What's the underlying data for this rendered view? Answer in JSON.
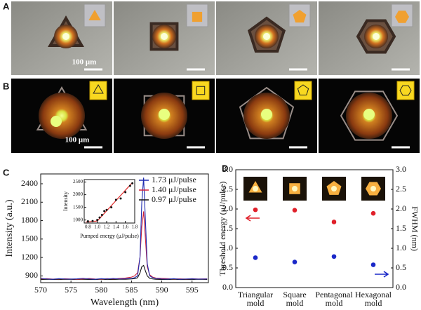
{
  "panel_labels": [
    "A",
    "B",
    "C",
    "D"
  ],
  "scale_bar_labels": [
    "100 μm",
    "100 μm"
  ],
  "chart_data": [
    {
      "type": "line",
      "xlabel": "Wavelength (nm)",
      "ylabel": "Intensity (a.u.)",
      "x": [
        570,
        571,
        572,
        573,
        574,
        575,
        576,
        577,
        578,
        579,
        580,
        581,
        582,
        583,
        584,
        585,
        585.5,
        586,
        586.4,
        586.7,
        587,
        587.3,
        587.6,
        588,
        588.5,
        589,
        590,
        591,
        592,
        593,
        594,
        595,
        596,
        597.5
      ],
      "series": [
        {
          "name": "1.73 μJ/pulse",
          "color": "#1f2bb0",
          "values": [
            860,
            850,
            845,
            855,
            850,
            848,
            852,
            860,
            850,
            845,
            855,
            850,
            858,
            850,
            852,
            860,
            870,
            900,
            1200,
            2100,
            2500,
            1800,
            1100,
            900,
            870,
            860,
            850,
            848,
            855,
            845,
            850,
            852,
            848,
            850
          ]
        },
        {
          "name": "1.40 μJ/pulse",
          "color": "#d0203a",
          "values": [
            850,
            855,
            848,
            850,
            853,
            850,
            845,
            850,
            858,
            850,
            848,
            855,
            850,
            860,
            865,
            880,
            900,
            950,
            1200,
            1700,
            1950,
            1500,
            1050,
            920,
            880,
            865,
            860,
            855,
            850,
            852,
            848,
            855,
            850,
            852
          ]
        },
        {
          "name": "0.97 μJ/pulse",
          "color": "#111111",
          "values": [
            840,
            845,
            842,
            840,
            845,
            843,
            840,
            845,
            842,
            840,
            845,
            840,
            842,
            845,
            845,
            850,
            855,
            870,
            950,
            1050,
            1070,
            980,
            900,
            860,
            850,
            845,
            842,
            840,
            845,
            840,
            842,
            840,
            845,
            842
          ]
        }
      ],
      "xlim": [
        570,
        597.7
      ],
      "xticks": [
        570,
        575,
        580,
        585,
        590,
        595
      ],
      "ylim": [
        790,
        2560
      ],
      "yticks": [
        900,
        1200,
        1500,
        1800,
        2100,
        2400
      ]
    },
    {
      "type": "scatter",
      "xlabel": "Pumped energy (μJ/pulse)",
      "ylabel": "Intensity",
      "x": [
        0.8,
        0.9,
        1.0,
        1.05,
        1.1,
        1.15,
        1.2,
        1.3,
        1.4,
        1.5,
        1.6,
        1.7,
        1.75
      ],
      "values": [
        950,
        960,
        1000,
        1100,
        1200,
        1350,
        1400,
        1500,
        1800,
        1850,
        2100,
        2350,
        2450
      ],
      "color": "#111111",
      "fit": {
        "x": [
          0.75,
          1.0,
          1.75
        ],
        "values": [
          920,
          960,
          2480
        ],
        "color": "#e03030"
      },
      "xlim": [
        0.72,
        1.8
      ],
      "xticks": [
        0.8,
        {
          "value": 1,
          "label": "1.0"
        },
        1.2,
        1.4,
        1.6,
        1.8
      ],
      "ylim": [
        880,
        2600
      ],
      "yticks": [
        1000,
        1500,
        2000,
        2500
      ]
    },
    {
      "type": "scatter",
      "ylabel": "Threshold energy (μJ/pulse)",
      "y2label": "FWHM (nm)",
      "categories": [
        [
          "Triangular",
          "mold"
        ],
        [
          "Square",
          "mold"
        ],
        [
          "Pentagonal",
          "mold"
        ],
        [
          "Hexagonal",
          "mold"
        ]
      ],
      "series": [
        {
          "color": "#e0202a",
          "values": [
            1.98,
            1.97,
            1.67,
            1.89
          ]
        },
        {
          "color": "#1a28c8",
          "axis": "y2",
          "values": [
            0.76,
            0.65,
            0.79,
            0.58
          ]
        }
      ],
      "ylim": [
        0,
        3
      ],
      "yticks": [
        {
          "value": 0,
          "label": "0.0"
        },
        0.5,
        {
          "value": 1,
          "label": "1.0"
        },
        1.5,
        {
          "value": 2,
          "label": "2.0"
        },
        2.5,
        {
          "value": 3,
          "label": "3.0"
        }
      ],
      "y2lim": [
        0,
        3
      ],
      "y2ticks": [
        {
          "value": 0,
          "label": "0.0"
        },
        0.5,
        {
          "value": 1,
          "label": "1.0"
        },
        1.5,
        {
          "value": 2,
          "label": "2.0"
        },
        2.5,
        {
          "value": 3,
          "label": "3.0"
        }
      ]
    }
  ]
}
